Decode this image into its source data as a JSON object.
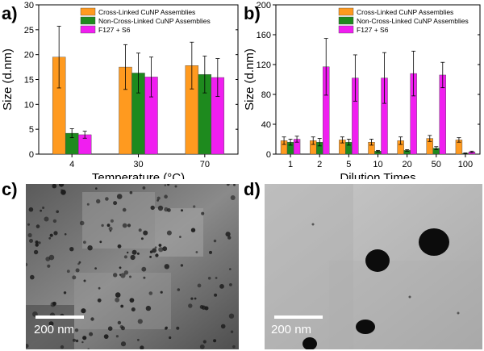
{
  "panels": {
    "a": {
      "letter": "a)"
    },
    "b": {
      "letter": "b)"
    },
    "c": {
      "letter": "c)",
      "scale_bar_label": "200 nm"
    },
    "d": {
      "letter": "d)",
      "scale_bar_label": "200 nm"
    }
  },
  "colors": {
    "cross_linked": "#ff9a1f",
    "non_cross_linked": "#1e8a1e",
    "f127_s6": "#f01ef0"
  },
  "chart_data": [
    {
      "type": "bar",
      "panel": "a",
      "categories": [
        "4",
        "30",
        "70"
      ],
      "xlabel": "Temperature (°C)",
      "ylabel": "Size (d.nm)",
      "ylim": [
        0,
        30
      ],
      "yticks": [
        0,
        5,
        10,
        15,
        20,
        25,
        30
      ],
      "legend_position": "top-right",
      "grid": false,
      "series": [
        {
          "name": "Cross-Linked CuNP Assemblies",
          "values": [
            19.5,
            17.5,
            17.8
          ],
          "errors": [
            6.2,
            4.5,
            4.7
          ]
        },
        {
          "name": "Non-Cross-Linked CuNP Assemblies",
          "values": [
            4.2,
            16.3,
            16.0
          ],
          "errors": [
            0.9,
            4.0,
            3.7
          ]
        },
        {
          "name": "F127 + S6",
          "values": [
            3.9,
            15.5,
            15.4
          ],
          "errors": [
            0.7,
            4.0,
            3.8
          ]
        }
      ]
    },
    {
      "type": "bar",
      "panel": "b",
      "categories": [
        "1",
        "2",
        "5",
        "10",
        "20",
        "50",
        "100"
      ],
      "xlabel": "Dilution Times",
      "ylabel": "Size (d.nm)",
      "ylim": [
        0,
        200
      ],
      "yticks": [
        0,
        40,
        80,
        120,
        160,
        200
      ],
      "legend_position": "top-right",
      "grid": false,
      "series": [
        {
          "name": "Cross-Linked CuNP Assemblies",
          "values": [
            18,
            18,
            19,
            16,
            18,
            21,
            19
          ],
          "errors": [
            5,
            5,
            4,
            4,
            5,
            4,
            3
          ]
        },
        {
          "name": "Non-Cross-Linked CuNP Assemblies",
          "values": [
            16,
            16,
            16,
            4,
            5,
            8,
            1
          ],
          "errors": [
            4,
            5,
            4,
            1,
            1,
            2,
            0.5
          ]
        },
        {
          "name": "F127 + S6",
          "values": [
            20,
            117,
            102,
            102,
            108,
            106,
            3
          ],
          "errors": [
            4,
            38,
            31,
            34,
            30,
            17,
            1
          ]
        }
      ]
    }
  ]
}
